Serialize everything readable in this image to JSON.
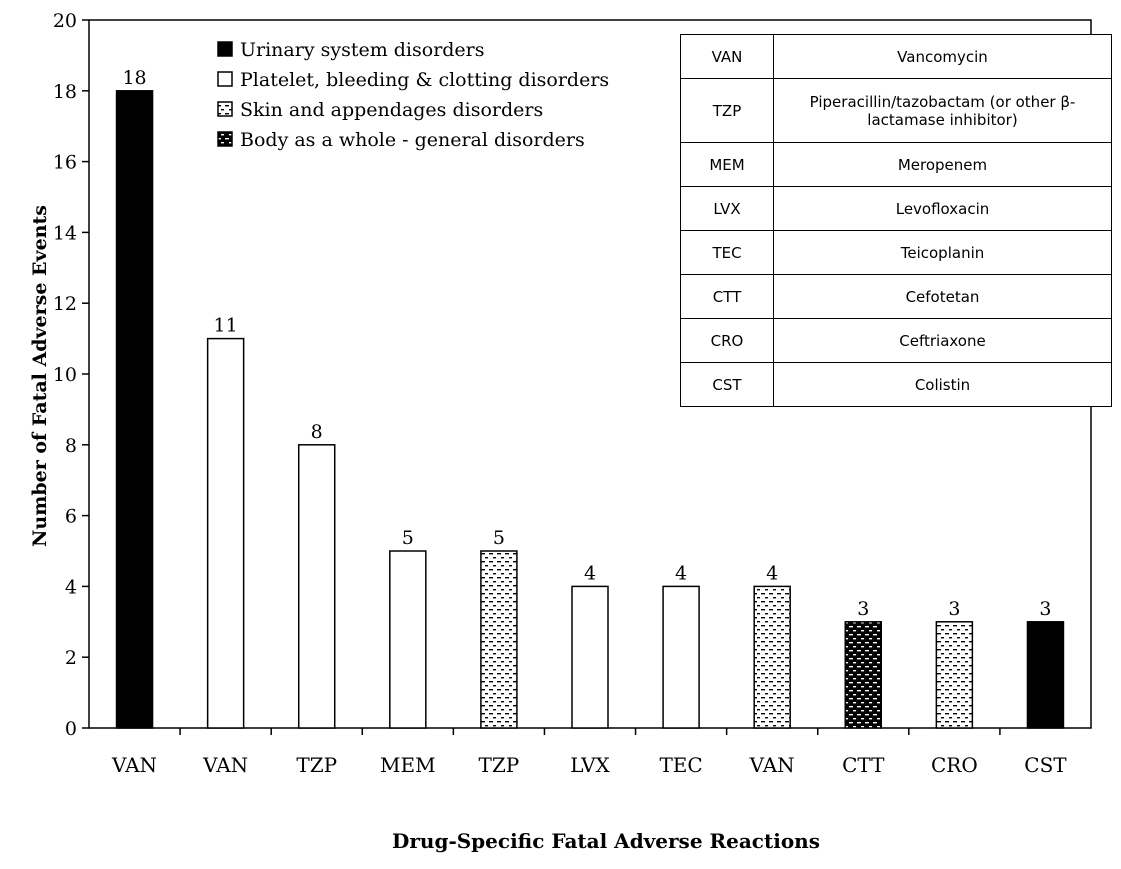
{
  "chart_data": {
    "type": "bar",
    "title": "",
    "xlabel": "Drug-Specific Fatal Adverse Reactions",
    "ylabel": "Number of Fatal Adverse Events",
    "ylim": [
      0,
      20
    ],
    "yticks": [
      "0",
      "2",
      "4",
      "6",
      "8",
      "10",
      "12",
      "14",
      "16",
      "18",
      "20"
    ],
    "categories": [
      "VAN",
      "VAN",
      "TZP",
      "MEM",
      "TZP",
      "LVX",
      "TEC",
      "VAN",
      "CTT",
      "CRO",
      "CST"
    ],
    "values": [
      18,
      11,
      8,
      5,
      5,
      4,
      4,
      4,
      3,
      3,
      3
    ],
    "bar_groups": [
      "urinary",
      "platelet",
      "platelet",
      "platelet",
      "skin",
      "platelet",
      "platelet",
      "skin",
      "body",
      "skin",
      "urinary"
    ],
    "legend": [
      {
        "key": "urinary",
        "label": "Urinary system disorders"
      },
      {
        "key": "platelet",
        "label": "Platelet, bleeding & clotting disorders"
      },
      {
        "key": "skin",
        "label": "Skin and appendages disorders"
      },
      {
        "key": "body",
        "label": "Body as a whole - general disorders"
      }
    ],
    "legend_position": "top-center"
  },
  "abbreviations": [
    {
      "code": "VAN",
      "name": "Vancomycin"
    },
    {
      "code": "TZP",
      "name": "Piperacillin/tazobactam (or other β-lactamase inhibitor)"
    },
    {
      "code": "MEM",
      "name": "Meropenem"
    },
    {
      "code": "LVX",
      "name": "Levofloxacin"
    },
    {
      "code": "TEC",
      "name": "Teicoplanin"
    },
    {
      "code": "CTT",
      "name": "Cefotetan"
    },
    {
      "code": "CRO",
      "name": "Ceftriaxone"
    },
    {
      "code": "CST",
      "name": "Colistin"
    }
  ]
}
